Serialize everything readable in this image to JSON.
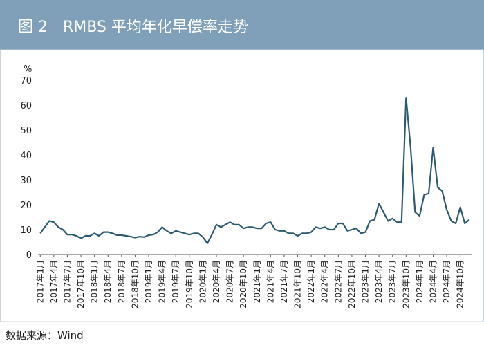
{
  "chart_data": {
    "type": "line",
    "title": "图 2　RMBS 平均年化早偿率走势",
    "y_label": "%",
    "source": "数据来源：Wind",
    "categories": [
      "2017年1月",
      null,
      null,
      "2017年4月",
      null,
      null,
      "2017年7月",
      null,
      null,
      "2017年10月",
      null,
      null,
      "2018年1月",
      null,
      null,
      "2018年4月",
      null,
      null,
      "2018年7月",
      null,
      null,
      "2018年10月",
      null,
      null,
      "2019年1月",
      null,
      null,
      "2019年4月",
      null,
      null,
      "2019年7月",
      null,
      null,
      "2019年10月",
      null,
      null,
      "2020年1月",
      null,
      null,
      "2020年4月",
      null,
      null,
      "2020年7月",
      null,
      null,
      "2020年10月",
      null,
      null,
      "2021年1月",
      null,
      null,
      "2021年4月",
      null,
      null,
      "2021年7月",
      null,
      null,
      "2021年10月",
      null,
      null,
      "2022年1月",
      null,
      null,
      "2022年4月",
      null,
      null,
      "2022年7月",
      null,
      null,
      "2022年10月",
      null,
      null,
      "2023年1月",
      null,
      null,
      "2023年4月",
      null,
      null,
      "2023年7月",
      null,
      null,
      "2023年10月",
      null,
      null,
      "2024年1月",
      null,
      null,
      "2024年4月",
      null,
      null,
      "2024年7月",
      null,
      null,
      "2024年10月",
      null,
      null
    ],
    "series": [
      {
        "color": "#2e5a70",
        "values": [
          8.5,
          11,
          13.5,
          13,
          11,
          10,
          8,
          8,
          7.5,
          6.5,
          7.5,
          7.5,
          8.5,
          7.5,
          9,
          9,
          8.5,
          7.8,
          7.8,
          7.5,
          7.2,
          6.8,
          7.2,
          7,
          7.8,
          8,
          9,
          11,
          9.5,
          8.5,
          9.5,
          9,
          8.5,
          8,
          8.5,
          8.5,
          7,
          4.5,
          8,
          12,
          11,
          12,
          13,
          12,
          12,
          10.5,
          11,
          11,
          10.5,
          10.5,
          12.5,
          13,
          10,
          9.5,
          9.5,
          8.5,
          8.5,
          7.5,
          8.5,
          8.5,
          9,
          11,
          10.5,
          11,
          10,
          10,
          12.5,
          12.5,
          9.5,
          10,
          10.5,
          8.5,
          9,
          13.5,
          14,
          20.5,
          17,
          13.5,
          14.5,
          13,
          13,
          63,
          43,
          17,
          15.5,
          24,
          24.5,
          43,
          27,
          25.5,
          18,
          13.5,
          12.5,
          19,
          12.5,
          14
        ]
      }
    ],
    "ylim": [
      0,
      70
    ],
    "yticks": [
      0,
      10,
      20,
      30,
      40,
      50,
      60,
      70
    ],
    "grid": false
  }
}
